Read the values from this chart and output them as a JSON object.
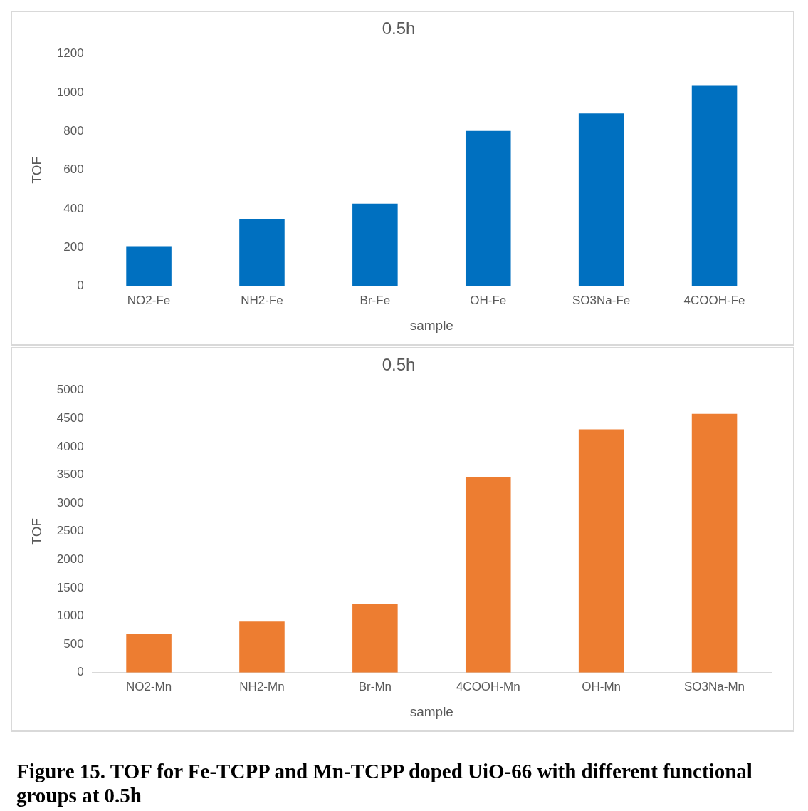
{
  "chart_data": [
    {
      "type": "bar",
      "title": "0.5h",
      "xlabel": "sample",
      "ylabel": "TOF",
      "categories": [
        "NO2-Fe",
        "NH2-Fe",
        "Br-Fe",
        "OH-Fe",
        "SO3Na-Fe",
        "4COOH-Fe"
      ],
      "values": [
        207,
        348,
        427,
        803,
        893,
        1039
      ],
      "color": "#0070c0",
      "ylim": [
        0,
        1200
      ],
      "yticks": [
        0,
        200,
        400,
        600,
        800,
        1000,
        1200
      ],
      "grid": false,
      "legend": false
    },
    {
      "type": "bar",
      "title": "0.5h",
      "xlabel": "sample",
      "ylabel": "TOF",
      "categories": [
        "NO2-Mn",
        "NH2-Mn",
        "Br-Mn",
        "4COOH-Mn",
        "OH-Mn",
        "SO3Na-Mn"
      ],
      "values": [
        692,
        904,
        1218,
        3459,
        4308,
        4585
      ],
      "color": "#ed7d31",
      "ylim": [
        0,
        5000
      ],
      "yticks": [
        0,
        500,
        1000,
        1500,
        2000,
        2500,
        3000,
        3500,
        4000,
        4500,
        5000
      ],
      "grid": false,
      "legend": false,
      "annotations": [
        "Figure 15. TOF for Fe-TCPP and Mn-TCPP doped UiO-66 with different functional groups at 0.5h"
      ]
    }
  ]
}
